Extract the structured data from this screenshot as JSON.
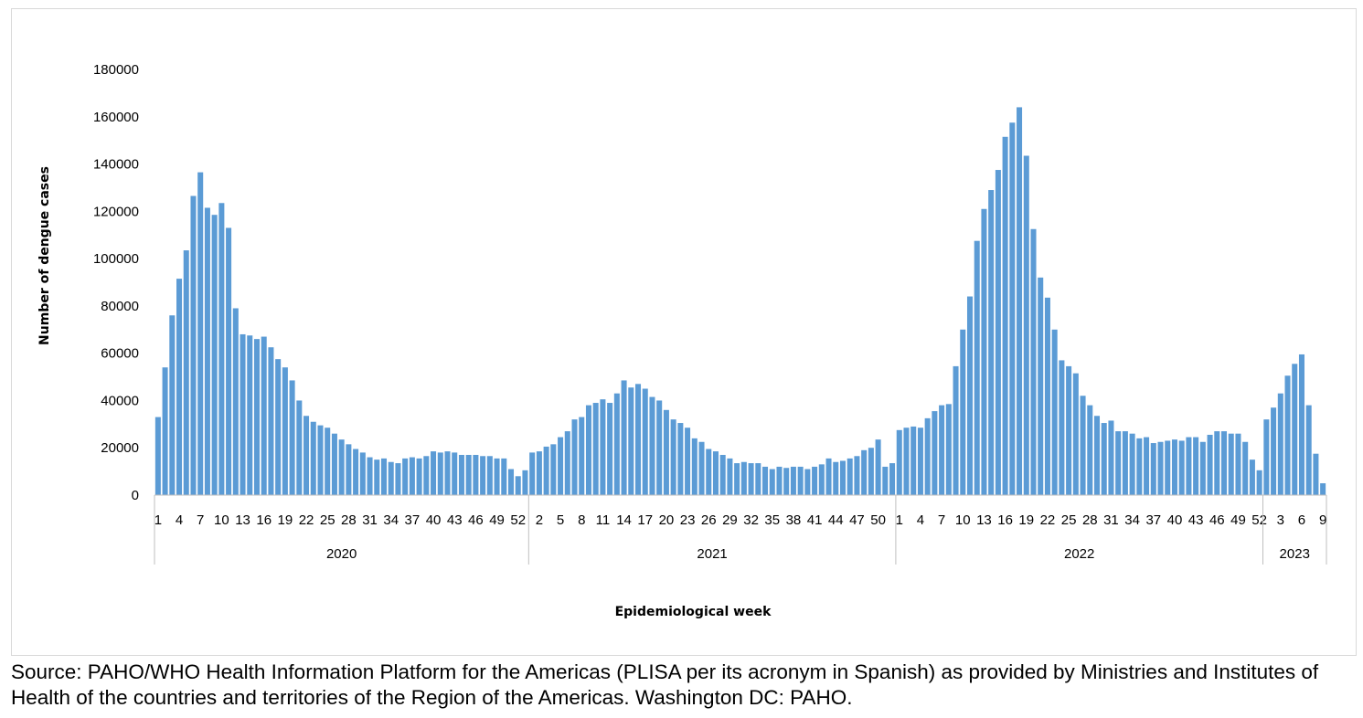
{
  "chart_data": {
    "type": "bar",
    "title": "",
    "xlabel": "Epidemiological week",
    "ylabel": "Number of dengue cases",
    "ylim": [
      0,
      180000
    ],
    "y_ticks": [
      0,
      20000,
      40000,
      60000,
      80000,
      100000,
      120000,
      140000,
      160000,
      180000
    ],
    "grid": false,
    "color": "#5b9bd5",
    "groups": [
      {
        "label": "2020",
        "weeks": [
          1,
          2,
          3,
          4,
          5,
          6,
          7,
          8,
          9,
          10,
          11,
          12,
          13,
          14,
          15,
          16,
          17,
          18,
          19,
          20,
          21,
          22,
          23,
          24,
          25,
          26,
          27,
          28,
          29,
          30,
          31,
          32,
          33,
          34,
          35,
          36,
          37,
          38,
          39,
          40,
          41,
          42,
          43,
          44,
          45,
          46,
          47,
          48,
          49,
          50,
          51,
          52,
          53
        ],
        "values": [
          33000,
          54000,
          76000,
          91500,
          103500,
          126500,
          136500,
          121500,
          118500,
          123500,
          113000,
          79000,
          68000,
          67500,
          66000,
          67000,
          62500,
          57500,
          54000,
          48500,
          40000,
          33500,
          31000,
          29500,
          28500,
          26000,
          23500,
          21500,
          19500,
          18000,
          16000,
          15000,
          15500,
          14000,
          13500,
          15500,
          16000,
          15500,
          16500,
          18500,
          18000,
          18500,
          18000,
          17000,
          17000,
          17000,
          16500,
          16500,
          15500,
          15500,
          11000,
          8000,
          10500
        ],
        "tick_labels": [
          "1",
          "4",
          "7",
          "10",
          "13",
          "16",
          "19",
          "22",
          "25",
          "28",
          "31",
          "34",
          "37",
          "40",
          "43",
          "46",
          "49",
          "52"
        ]
      },
      {
        "label": "2021",
        "weeks": [
          1,
          2,
          3,
          4,
          5,
          6,
          7,
          8,
          9,
          10,
          11,
          12,
          13,
          14,
          15,
          16,
          17,
          18,
          19,
          20,
          21,
          22,
          23,
          24,
          25,
          26,
          27,
          28,
          29,
          30,
          31,
          32,
          33,
          34,
          35,
          36,
          37,
          38,
          39,
          40,
          41,
          42,
          43,
          44,
          45,
          46,
          47,
          48,
          49,
          50,
          51,
          52
        ],
        "values": [
          18000,
          18500,
          20500,
          21500,
          24500,
          27000,
          32000,
          33000,
          38000,
          39000,
          40500,
          39000,
          43000,
          48500,
          45500,
          47000,
          45000,
          41500,
          40000,
          36000,
          32000,
          30500,
          28500,
          24000,
          22500,
          19500,
          18500,
          17000,
          15500,
          13500,
          14000,
          13500,
          13500,
          12000,
          11000,
          12000,
          11500,
          12000,
          12000,
          11000,
          12000,
          13000,
          15500,
          14000,
          14500,
          15500,
          16500,
          19000,
          20000,
          23500,
          12000,
          13500
        ],
        "tick_labels": [
          "2",
          "5",
          "8",
          "11",
          "14",
          "17",
          "20",
          "23",
          "26",
          "29",
          "32",
          "35",
          "38",
          "41",
          "44",
          "47",
          "50"
        ]
      },
      {
        "label": "2022",
        "weeks": [
          1,
          2,
          3,
          4,
          5,
          6,
          7,
          8,
          9,
          10,
          11,
          12,
          13,
          14,
          15,
          16,
          17,
          18,
          19,
          20,
          21,
          22,
          23,
          24,
          25,
          26,
          27,
          28,
          29,
          30,
          31,
          32,
          33,
          34,
          35,
          36,
          37,
          38,
          39,
          40,
          41,
          42,
          43,
          44,
          45,
          46,
          47,
          48,
          49,
          50,
          51,
          52
        ],
        "values": [
          27500,
          28500,
          29000,
          28500,
          32500,
          35500,
          38000,
          38500,
          54500,
          70000,
          84000,
          107500,
          121000,
          129000,
          137500,
          151500,
          157500,
          164000,
          143500,
          112500,
          92000,
          83500,
          70000,
          57000,
          54500,
          51500,
          42000,
          38000,
          33500,
          30500,
          31500,
          27000,
          27000,
          26000,
          24000,
          24500,
          22000,
          22500,
          23000,
          23500,
          23000,
          24500,
          24500,
          22500,
          25500,
          27000,
          27000,
          26000,
          26000,
          22500,
          15000,
          10500
        ],
        "tick_labels": [
          "1",
          "4",
          "7",
          "10",
          "13",
          "16",
          "19",
          "22",
          "25",
          "28",
          "31",
          "34",
          "37",
          "40",
          "43",
          "46",
          "49",
          "52"
        ]
      },
      {
        "label": "2023",
        "weeks": [
          1,
          2,
          3,
          4,
          5,
          6,
          7,
          8,
          9
        ],
        "values": [
          32000,
          37000,
          43000,
          50500,
          55500,
          59500,
          38000,
          17500,
          5000
        ],
        "tick_labels": [
          "3",
          "6",
          "9"
        ]
      }
    ]
  },
  "source": "Source: PAHO/WHO Health Information Platform for the Americas (PLISA per its acronym in Spanish) as provided by Ministries and Institutes of Health of the countries and territories of the Region of the Americas. Washington DC: PAHO."
}
